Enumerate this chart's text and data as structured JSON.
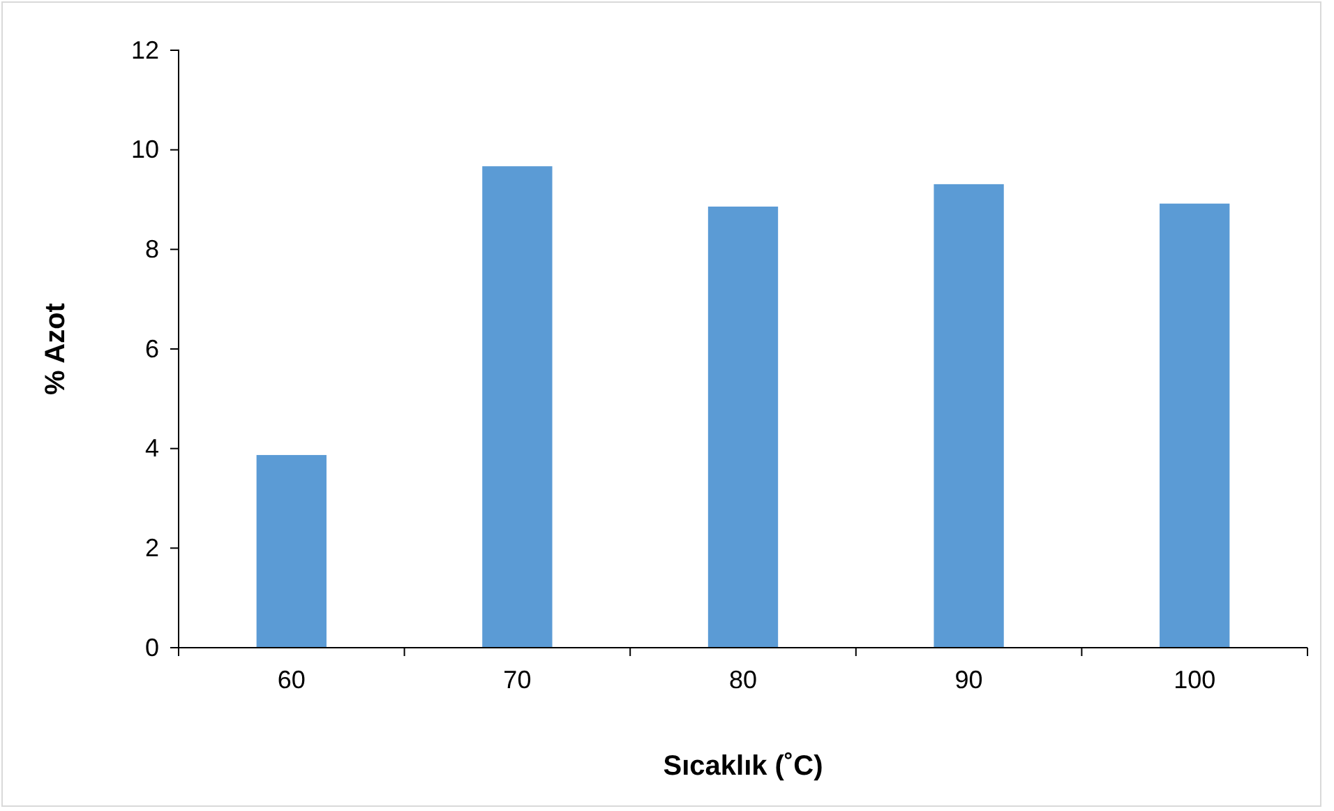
{
  "chart_data": {
    "type": "bar",
    "xlabel": "Sıcaklık (˚C)",
    "ylabel": "% Azot",
    "categories": [
      "60",
      "70",
      "80",
      "90",
      "100"
    ],
    "values": [
      3.87,
      9.67,
      8.86,
      9.31,
      8.92
    ],
    "color": "#5b9bd5",
    "ylim": [
      0,
      12
    ],
    "yticks": [
      0,
      2,
      4,
      6,
      8,
      10,
      12
    ],
    "grid": false
  }
}
